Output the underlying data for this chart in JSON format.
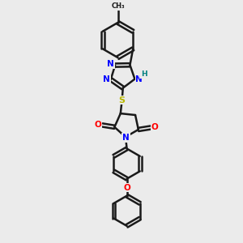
{
  "background_color": "#ebebeb",
  "bond_color": "#1a1a1a",
  "bond_width": 1.8,
  "atom_colors": {
    "N": "#0000ff",
    "O": "#ff0000",
    "S": "#b8b800",
    "H": "#008080",
    "C": "#1a1a1a"
  },
  "figsize": [
    3.0,
    3.0
  ],
  "dpi": 100
}
